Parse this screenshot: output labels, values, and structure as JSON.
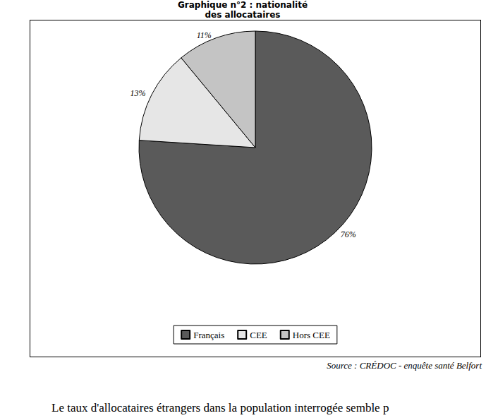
{
  "chart_data": {
    "type": "pie",
    "title": "Graphique n°2 : nationalité des allocataires",
    "categories": [
      "Français",
      "CEE",
      "Hors CEE"
    ],
    "values": [
      76,
      13,
      11
    ],
    "value_labels": [
      "76%",
      "13%",
      "11%"
    ],
    "colors": [
      "#5a5a5a",
      "#e6e6e6",
      "#c4c4c4"
    ],
    "data_labels": true,
    "legend": "bottom",
    "annotations": [
      "Source : CRÉDOC - enquête santé Belfort",
      "Le taux d'allocataires étrangers dans la population interrogée semble p"
    ]
  }
}
